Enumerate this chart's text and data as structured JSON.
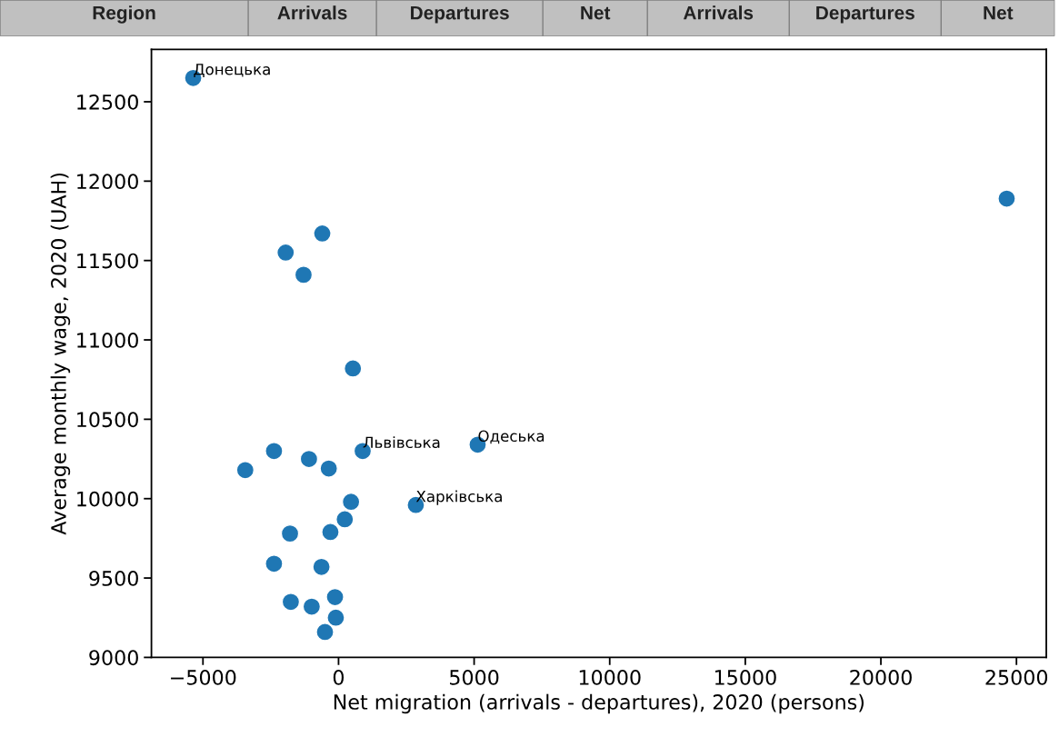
{
  "chart_data": [
    {
      "type": "other",
      "annotations": [
        "Region",
        "Arrivals",
        "Departures",
        "Net",
        "Arrivals",
        "Departures",
        "Net"
      ]
    },
    {
      "type": "scatter",
      "xlabel": "Net migration (arrivals - departures), 2020 (persons)",
      "ylabel": "Average monthly wage, 2020 (UAH)",
      "x": [
        -5360,
        24640,
        -600,
        -1950,
        -1290,
        530,
        5130,
        -2380,
        890,
        -1090,
        -360,
        -3440,
        460,
        2850,
        230,
        -1790,
        -300,
        -2380,
        -630,
        -130,
        -1760,
        -990,
        -100,
        -500
      ],
      "values": [
        12650,
        11890,
        11670,
        11550,
        11410,
        10820,
        10340,
        10300,
        10300,
        10250,
        10190,
        10180,
        9980,
        9960,
        9870,
        9780,
        9790,
        9590,
        9570,
        9380,
        9350,
        9320,
        9250,
        9160
      ],
      "color": "#1f77b4",
      "marker": "circle",
      "xlim": [
        -6900,
        26100
      ],
      "ylim": [
        9000,
        12830
      ],
      "xticks": [
        {
          "value": -5000,
          "label": "−5000"
        },
        0,
        5000,
        10000,
        15000,
        20000,
        25000
      ],
      "yticks": [
        9000,
        9500,
        10000,
        10500,
        11000,
        11500,
        12000,
        12500
      ],
      "grid": false,
      "annotations": [
        {
          "text": "Донецька",
          "x": -5360,
          "y": 12650
        },
        {
          "text": "Одеська",
          "x": 5130,
          "y": 10340
        },
        {
          "text": "Львівська",
          "x": 890,
          "y": 10300
        },
        {
          "text": "Харківська",
          "x": 2850,
          "y": 9960
        }
      ]
    }
  ]
}
